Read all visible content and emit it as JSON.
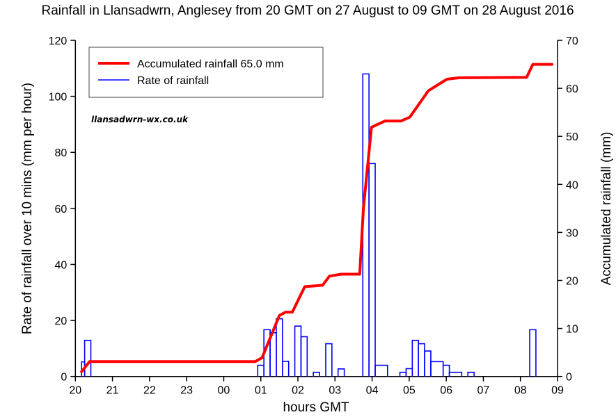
{
  "chart_data": {
    "type": "line",
    "title": "Rainfall in Llansadwrn, Anglesey from 20 GMT on 27 August to 09 GMT on 28 August 2016",
    "xlabel": "hours GMT",
    "ylabel_left": "Rate of rainfall over 10 mins (mm per hour)",
    "ylabel_right": "Accumulated rainfall (mm)",
    "x_ticks": [
      "20",
      "21",
      "22",
      "23",
      "00",
      "01",
      "02",
      "03",
      "04",
      "05",
      "06",
      "07",
      "08",
      "09"
    ],
    "xlim": [
      "20:00",
      "09:00"
    ],
    "ylim_left": [
      0,
      120
    ],
    "y_ticks_left": [
      0,
      20,
      40,
      60,
      80,
      100,
      120
    ],
    "ylim_right": [
      0,
      70
    ],
    "y_ticks_right": [
      0,
      10,
      20,
      30,
      40,
      50,
      60,
      70
    ],
    "grid": false,
    "legend_position": "top-left",
    "watermark": "llansadwrn-wx.co.uk",
    "series": [
      {
        "name": "Accumulated rainfall 65.0 mm",
        "axis": "right",
        "color": "#ff0000",
        "style": "line",
        "points": [
          [
            "20:10",
            1.0
          ],
          [
            "20:23",
            3.1
          ],
          [
            "00:51",
            3.1
          ],
          [
            "01:02",
            3.9
          ],
          [
            "01:30",
            12.7
          ],
          [
            "01:40",
            13.4
          ],
          [
            "01:51",
            13.4
          ],
          [
            "02:11",
            18.7
          ],
          [
            "02:40",
            19.0
          ],
          [
            "02:51",
            20.9
          ],
          [
            "03:10",
            21.3
          ],
          [
            "03:40",
            21.3
          ],
          [
            "03:46",
            35.0
          ],
          [
            "03:59",
            51.9
          ],
          [
            "04:21",
            53.2
          ],
          [
            "04:47",
            53.2
          ],
          [
            "05:01",
            54.0
          ],
          [
            "05:31",
            59.5
          ],
          [
            "06:01",
            61.9
          ],
          [
            "06:21",
            62.2
          ],
          [
            "08:10",
            62.3
          ],
          [
            "08:20",
            65.0
          ],
          [
            "08:51",
            65.0
          ]
        ]
      },
      {
        "name": "Rate of rainfall",
        "axis": "left",
        "color": "#0000ff",
        "style": "step",
        "bars": [
          [
            "20:10",
            "20:15",
            5.2
          ],
          [
            "20:15",
            "20:25",
            12.9
          ],
          [
            "00:55",
            "01:05",
            4.0
          ],
          [
            "01:05",
            "01:15",
            16.7
          ],
          [
            "01:15",
            "01:25",
            15.6
          ],
          [
            "01:25",
            "01:35",
            20.6
          ],
          [
            "01:35",
            "01:45",
            5.4
          ],
          [
            "01:55",
            "02:05",
            18.0
          ],
          [
            "02:05",
            "02:15",
            14.2
          ],
          [
            "02:25",
            "02:35",
            1.5
          ],
          [
            "02:45",
            "02:55",
            11.7
          ],
          [
            "03:05",
            "03:15",
            2.7
          ],
          [
            "03:45",
            "03:55",
            108
          ],
          [
            "03:55",
            "04:05",
            76
          ],
          [
            "04:05",
            "04:25",
            4.0
          ],
          [
            "04:45",
            "04:55",
            1.5
          ],
          [
            "04:55",
            "05:05",
            2.8
          ],
          [
            "05:05",
            "05:15",
            12.9
          ],
          [
            "05:15",
            "05:25",
            11.7
          ],
          [
            "05:25",
            "05:35",
            9.1
          ],
          [
            "05:35",
            "05:55",
            5.3
          ],
          [
            "05:55",
            "06:05",
            4.0
          ],
          [
            "06:05",
            "06:25",
            1.5
          ],
          [
            "06:35",
            "06:45",
            1.5
          ],
          [
            "08:15",
            "08:25",
            16.7
          ]
        ]
      }
    ]
  }
}
